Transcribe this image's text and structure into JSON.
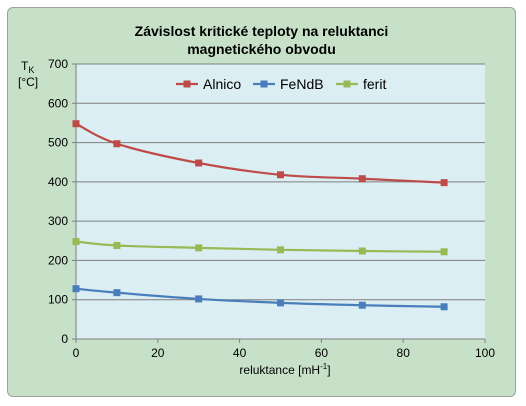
{
  "chart_data": {
    "type": "line",
    "title_line1": "Závislost kritické teploty na reluktanci",
    "title_line2": "magnetického obvodu",
    "ylabel_main": "T",
    "ylabel_sub": "K",
    "ylabel_unit": "[°C]",
    "xlabel_main": "reluktance [mH",
    "xlabel_sup": "-1",
    "xlabel_end": "]",
    "xlim": [
      0,
      100
    ],
    "ylim": [
      0,
      700
    ],
    "xticks": [
      0,
      20,
      40,
      60,
      80,
      100
    ],
    "yticks": [
      0,
      100,
      200,
      300,
      400,
      500,
      600,
      700
    ],
    "grid": "horizontal",
    "legend_position": "top",
    "plot_background": "#dbeef3",
    "chart_background": "#c7e1c8",
    "series": [
      {
        "name": "Alnico",
        "color": "#be4b48",
        "x": [
          0,
          10,
          30,
          50,
          70,
          90
        ],
        "y": [
          548,
          497,
          448,
          418,
          408,
          398
        ]
      },
      {
        "name": "FeNdB",
        "color": "#4a7ebb",
        "x": [
          0,
          10,
          30,
          50,
          70,
          90
        ],
        "y": [
          128,
          118,
          102,
          92,
          86,
          82
        ]
      },
      {
        "name": "ferit",
        "color": "#98b954",
        "x": [
          0,
          10,
          30,
          50,
          70,
          90
        ],
        "y": [
          248,
          238,
          232,
          227,
          224,
          222
        ]
      }
    ]
  }
}
